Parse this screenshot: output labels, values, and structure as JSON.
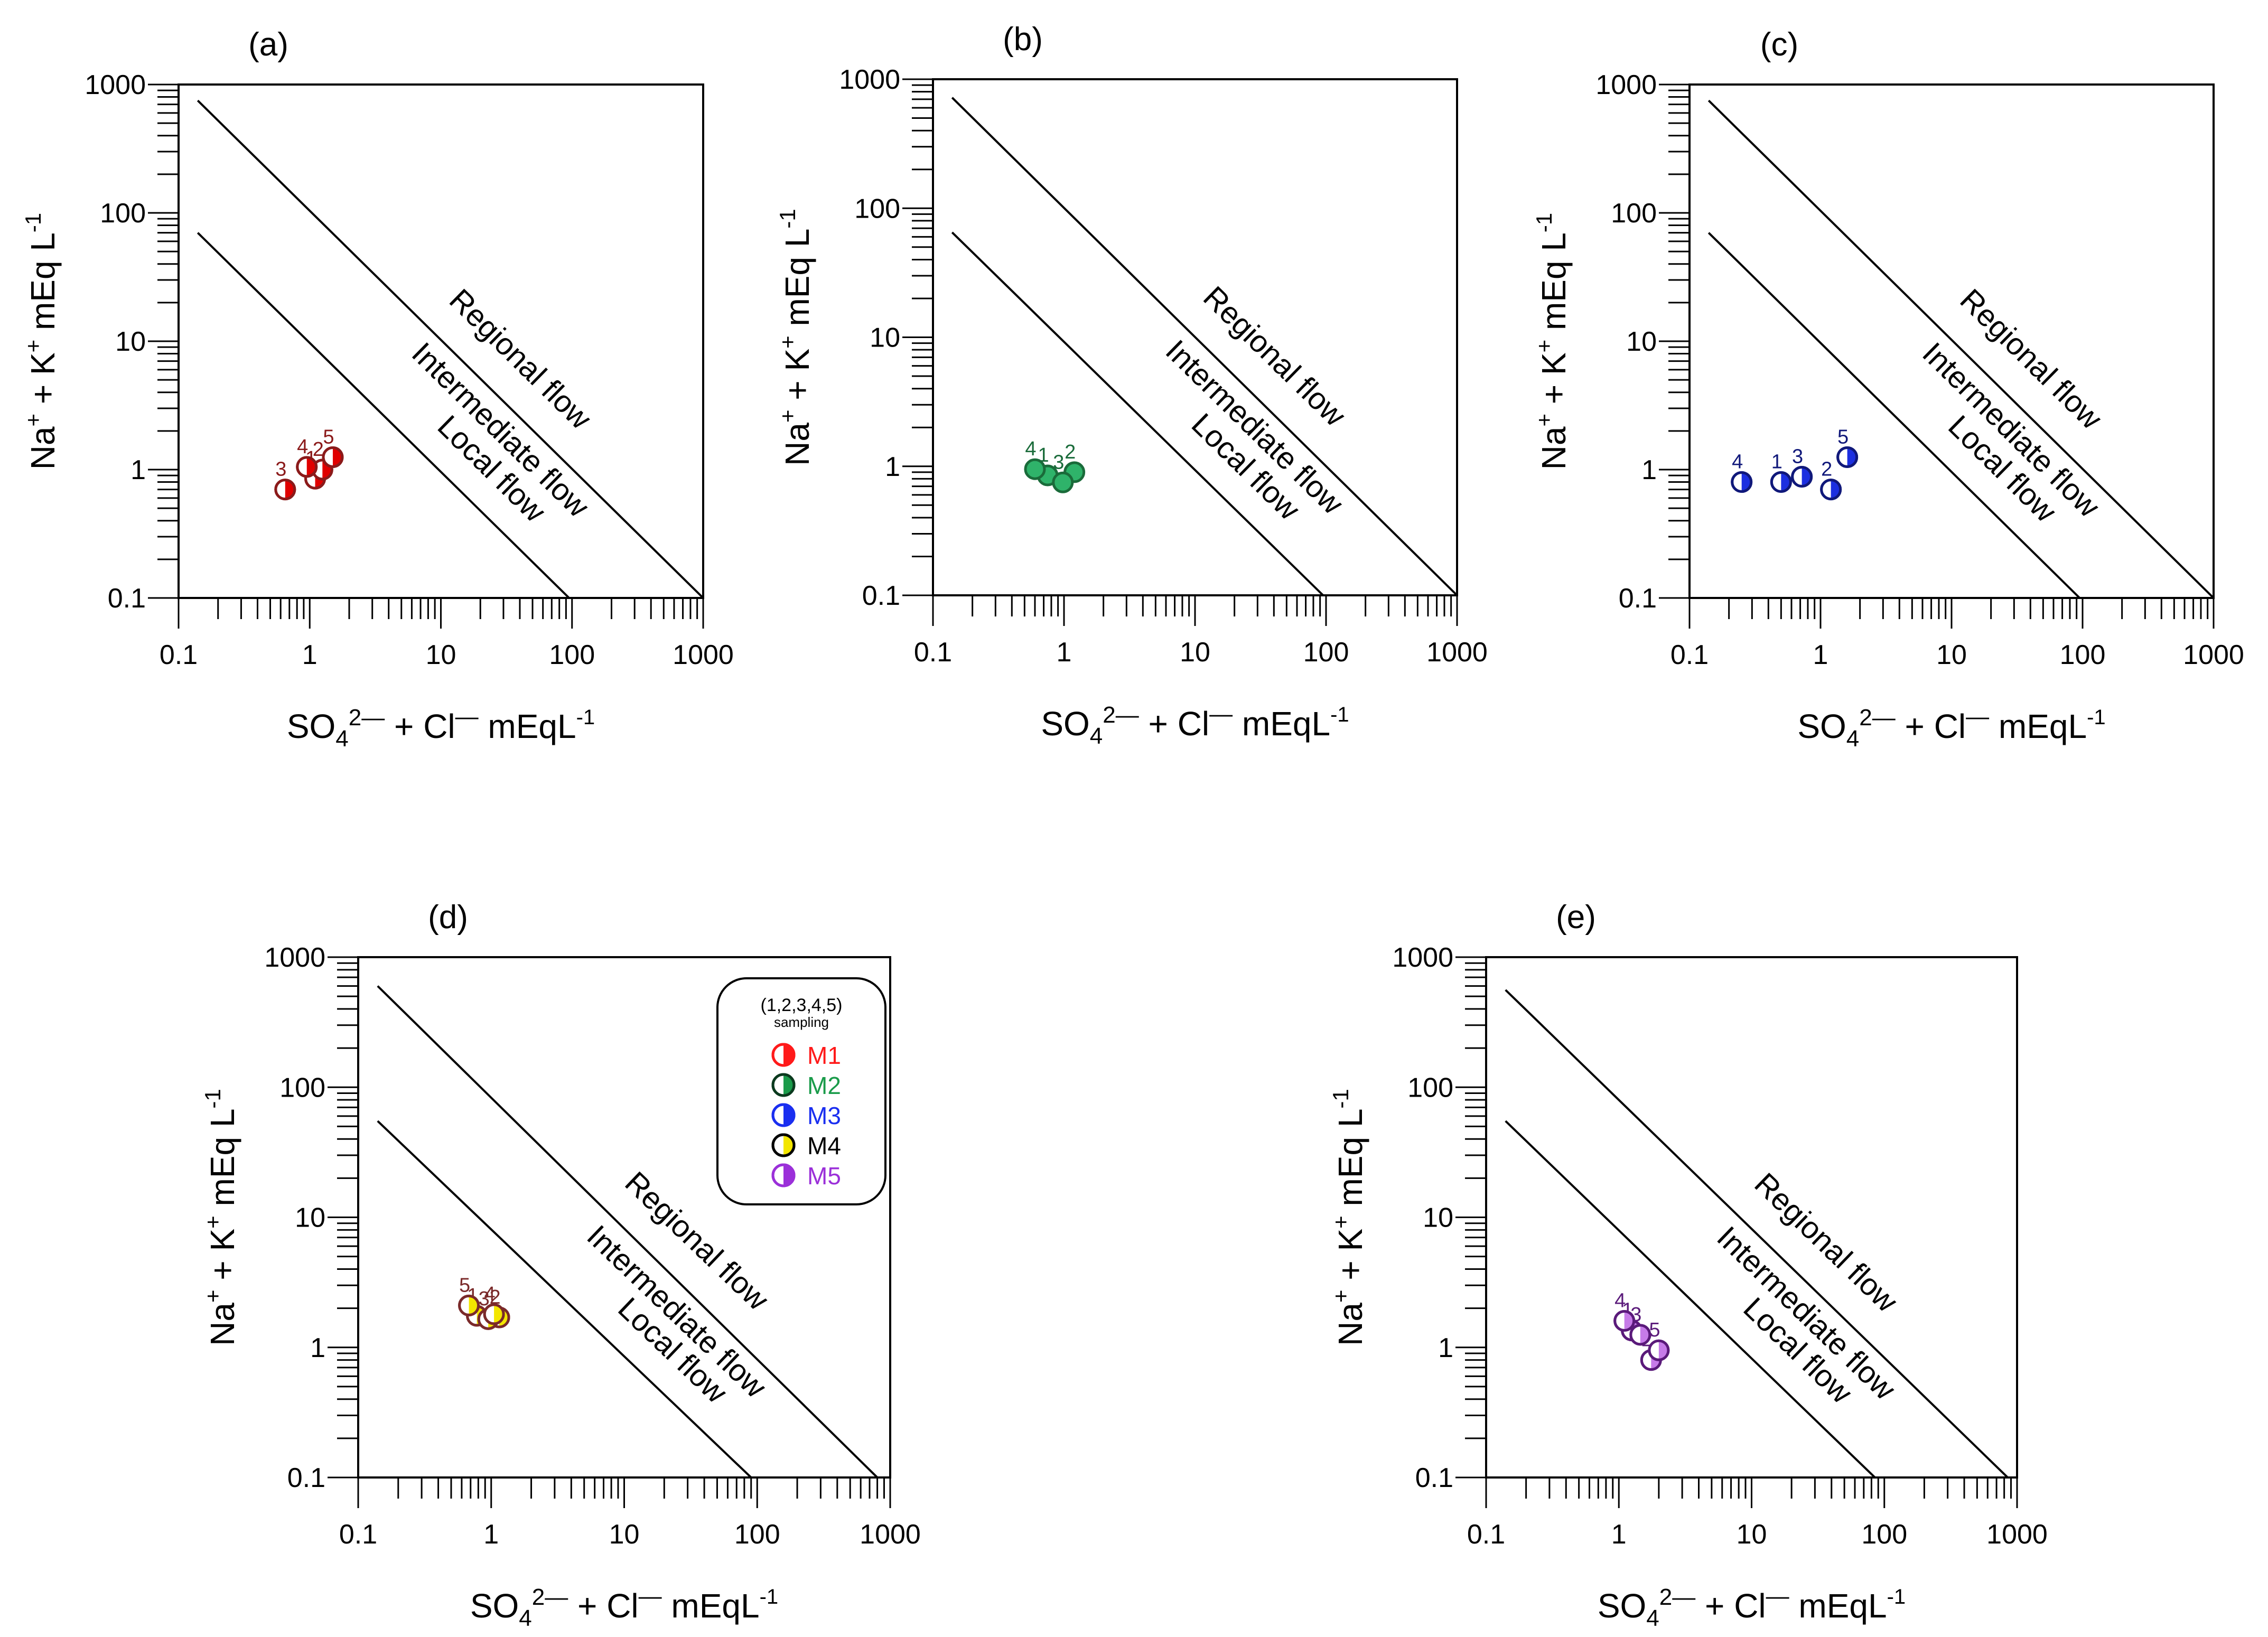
{
  "chart_data": [
    {
      "id": "a",
      "type": "scatter",
      "panel_label": "(a)",
      "xscale": "log",
      "yscale": "log",
      "xlim": [
        0.1,
        1000
      ],
      "ylim": [
        0.1,
        1000
      ],
      "x_ticks": [
        "0.1",
        "1",
        "10",
        "100",
        "1000"
      ],
      "y_ticks": [
        "0.1",
        "1",
        "10",
        "100",
        "1000"
      ],
      "xlabel": {
        "base": "SO",
        "sub": "4",
        "sup": "2—",
        "rest": " + Cl",
        "sup2": "—",
        "unit": "  mEqL",
        "unit_sup": "-1"
      },
      "ylabel": {
        "t1": "Na",
        "s1": "+",
        "t2": " + K",
        "s2": "+",
        "t3": " mEq L",
        "s3": "-1"
      },
      "regions": [
        "Local flow",
        "Intermediate flow",
        "Regional flow"
      ],
      "boundaries": [
        [
          [
            0.14,
            70
          ],
          [
            95,
            0.1
          ]
        ],
        [
          [
            0.14,
            750
          ],
          [
            1000,
            0.1
          ]
        ]
      ],
      "marker": {
        "fill": "#e00000",
        "stroke": "#8b1a1a",
        "label_color": "#8b1a1a",
        "style": "half"
      },
      "points": [
        {
          "label": "1",
          "x": 1.1,
          "y": 0.85
        },
        {
          "label": "2",
          "x": 1.25,
          "y": 1.0
        },
        {
          "label": "3",
          "x": 0.65,
          "y": 0.7
        },
        {
          "label": "4",
          "x": 0.95,
          "y": 1.05
        },
        {
          "label": "5",
          "x": 1.5,
          "y": 1.25
        }
      ]
    },
    {
      "id": "b",
      "type": "scatter",
      "panel_label": "(b)",
      "xscale": "log",
      "yscale": "log",
      "xlim": [
        0.1,
        1000
      ],
      "ylim": [
        0.1,
        1000
      ],
      "x_ticks": [
        "0.1",
        "1",
        "10",
        "100",
        "1000"
      ],
      "y_ticks": [
        "0.1",
        "1",
        "10",
        "100",
        "1000"
      ],
      "xlabel": {
        "base": "SO",
        "sub": "4",
        "sup": "2—",
        "rest": "  + Cl",
        "sup2": "—",
        "unit": "   mEqL",
        "unit_sup": "-1"
      },
      "ylabel": {
        "t1": "Na",
        "s1": "+",
        "t2": " + K",
        "s2": "+",
        "t3": " mEq L",
        "s3": "-1"
      },
      "regions": [
        "Local flow",
        "Intermediate flow",
        "Regional flow"
      ],
      "boundaries": [
        [
          [
            0.14,
            65
          ],
          [
            95,
            0.1
          ]
        ],
        [
          [
            0.14,
            720
          ],
          [
            1000,
            0.1
          ]
        ]
      ],
      "marker": {
        "fill": "#2fb36a",
        "stroke": "#1a6b3a",
        "label_color": "#1a6b3a",
        "style": "full"
      },
      "points": [
        {
          "label": "1",
          "x": 0.75,
          "y": 0.85
        },
        {
          "label": "2",
          "x": 1.2,
          "y": 0.9
        },
        {
          "label": "3",
          "x": 0.98,
          "y": 0.75
        },
        {
          "label": "4",
          "x": 0.6,
          "y": 0.95
        }
      ]
    },
    {
      "id": "c",
      "type": "scatter",
      "panel_label": "(c)",
      "xscale": "log",
      "yscale": "log",
      "xlim": [
        0.1,
        1000
      ],
      "ylim": [
        0.1,
        1000
      ],
      "x_ticks": [
        "0.1",
        "1",
        "10",
        "100",
        "1000"
      ],
      "y_ticks": [
        "0.1",
        "1",
        "10",
        "100",
        "1000"
      ],
      "xlabel": {
        "base": "SO",
        "sub": "4",
        "sup": "2—",
        "rest": " + Cl",
        "sup2": "—",
        "unit": "  mEqL",
        "unit_sup": "-1"
      },
      "ylabel": {
        "t1": "Na",
        "s1": "+",
        "t2": " + K",
        "s2": "+",
        "t3": " mEq L",
        "s3": "-1"
      },
      "regions": [
        "Local flow",
        "Intermediate flow",
        "Regional flow"
      ],
      "boundaries": [
        [
          [
            0.14,
            70
          ],
          [
            95,
            0.1
          ]
        ],
        [
          [
            0.14,
            750
          ],
          [
            1000,
            0.1
          ]
        ]
      ],
      "marker": {
        "fill": "#1c2fe0",
        "stroke": "#10187a",
        "label_color": "#10187a",
        "style": "half"
      },
      "points": [
        {
          "label": "1",
          "x": 0.5,
          "y": 0.8
        },
        {
          "label": "2",
          "x": 1.2,
          "y": 0.7
        },
        {
          "label": "3",
          "x": 0.72,
          "y": 0.88
        },
        {
          "label": "4",
          "x": 0.25,
          "y": 0.8
        },
        {
          "label": "5",
          "x": 1.6,
          "y": 1.25
        }
      ]
    },
    {
      "id": "d",
      "type": "scatter",
      "panel_label": "(d)",
      "xscale": "log",
      "yscale": "log",
      "xlim": [
        0.1,
        1000
      ],
      "ylim": [
        0.1,
        1000
      ],
      "x_ticks": [
        "0.1",
        "1",
        "10",
        "100",
        "1000"
      ],
      "y_ticks": [
        "0.1",
        "1",
        "10",
        "100",
        "1000"
      ],
      "xlabel": {
        "base": "SO",
        "sub": "4",
        "sup": "2—",
        "rest": "   + Cl",
        "sup2": "—",
        "unit": "   mEqL",
        "unit_sup": "-1"
      },
      "ylabel": {
        "t1": "Na",
        "s1": "+",
        "t2": " + K",
        "s2": "+",
        "t3": " mEq L",
        "s3": "-1"
      },
      "regions": [
        "Local flow",
        "Intermediate flow",
        "Regional flow"
      ],
      "boundaries": [
        [
          [
            0.14,
            55
          ],
          [
            90,
            0.1
          ]
        ],
        [
          [
            0.14,
            600
          ],
          [
            800,
            0.1
          ]
        ]
      ],
      "marker": {
        "fill": "#f3e600",
        "stroke": "#7a2a2a",
        "label_color": "#7a2a2a",
        "style": "half"
      },
      "points": [
        {
          "label": "1",
          "x": 0.78,
          "y": 1.75
        },
        {
          "label": "2",
          "x": 1.15,
          "y": 1.7
        },
        {
          "label": "3",
          "x": 0.95,
          "y": 1.65
        },
        {
          "label": "4",
          "x": 1.05,
          "y": 1.8
        },
        {
          "label": "5",
          "x": 0.68,
          "y": 2.1
        }
      ]
    },
    {
      "id": "e",
      "type": "scatter",
      "panel_label": "(e)",
      "xscale": "log",
      "yscale": "log",
      "xlim": [
        0.1,
        1000
      ],
      "ylim": [
        0.1,
        1000
      ],
      "x_ticks": [
        "0.1",
        "1",
        "10",
        "100",
        "1000"
      ],
      "y_ticks": [
        "0.1",
        "1",
        "10",
        "100",
        "1000"
      ],
      "xlabel": {
        "base": "SO",
        "sub": "4",
        "sup": "2—",
        "rest": "   + Cl",
        "sup2": "—",
        "unit": "   mEqL",
        "unit_sup": "-1"
      },
      "ylabel": {
        "t1": "Na",
        "s1": "+",
        "t2": " + K",
        "s2": "+",
        "t3": " mEq L",
        "s3": "-1"
      },
      "regions": [
        "Local flow",
        "Intermediate flow",
        "Regional flow"
      ],
      "boundaries": [
        [
          [
            0.14,
            55
          ],
          [
            85,
            0.1
          ]
        ],
        [
          [
            0.14,
            560
          ],
          [
            850,
            0.1
          ]
        ]
      ],
      "marker": {
        "fill": "#c67be8",
        "stroke": "#5a1a7a",
        "label_color": "#5a1a7a",
        "style": "half"
      },
      "points": [
        {
          "label": "1",
          "x": 1.25,
          "y": 1.35
        },
        {
          "label": "2",
          "x": 1.75,
          "y": 0.8
        },
        {
          "label": "3",
          "x": 1.45,
          "y": 1.25
        },
        {
          "label": "4",
          "x": 1.1,
          "y": 1.6
        },
        {
          "label": "5",
          "x": 2.0,
          "y": 0.95
        }
      ]
    }
  ],
  "legend": {
    "title": "(1,2,3,4,5)",
    "subtitle": "sampling",
    "entries": [
      {
        "label": "M1",
        "text_color": "#ff1a1a",
        "fill": "#ff1a1a",
        "stroke": "#ff1a1a"
      },
      {
        "label": "M2",
        "text_color": "#1a9b4a",
        "fill": "#1a9b4a",
        "stroke": "#0b3a1e"
      },
      {
        "label": "M3",
        "text_color": "#1a2ef0",
        "fill": "#1a2ef0",
        "stroke": "#1a2ef0"
      },
      {
        "label": "M4",
        "text_color": "#000000",
        "fill": "#f3e600",
        "stroke": "#000000"
      },
      {
        "label": "M5",
        "text_color": "#9b30d9",
        "fill": "#9b30d9",
        "stroke": "#9b30d9"
      }
    ]
  }
}
